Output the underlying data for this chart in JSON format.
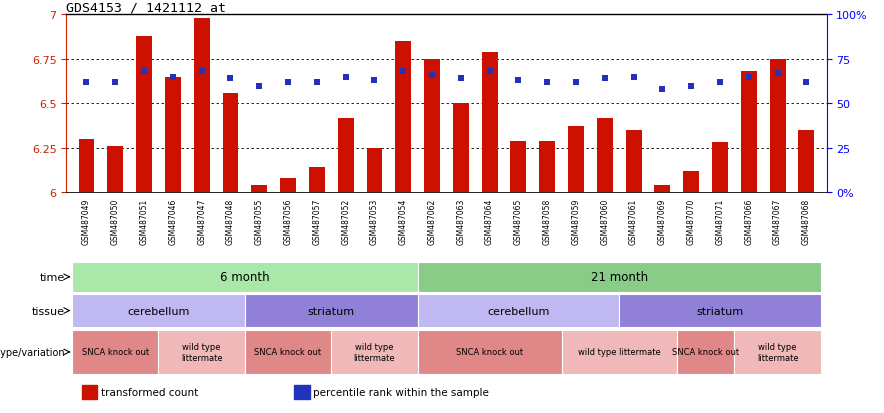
{
  "title": "GDS4153 / 1421112_at",
  "samples": [
    "GSM487049",
    "GSM487050",
    "GSM487051",
    "GSM487046",
    "GSM487047",
    "GSM487048",
    "GSM487055",
    "GSM487056",
    "GSM487057",
    "GSM487052",
    "GSM487053",
    "GSM487054",
    "GSM487062",
    "GSM487063",
    "GSM487064",
    "GSM487065",
    "GSM487058",
    "GSM487059",
    "GSM487060",
    "GSM487061",
    "GSM487069",
    "GSM487070",
    "GSM487071",
    "GSM487066",
    "GSM487067",
    "GSM487068"
  ],
  "bar_values": [
    6.3,
    6.26,
    6.88,
    6.65,
    6.98,
    6.56,
    6.04,
    6.08,
    6.14,
    6.42,
    6.25,
    6.85,
    6.75,
    6.5,
    6.79,
    6.29,
    6.29,
    6.37,
    6.42,
    6.35,
    6.04,
    6.12,
    6.28,
    6.68,
    6.75,
    6.35
  ],
  "dot_values": [
    6.62,
    6.62,
    6.68,
    6.65,
    6.68,
    6.64,
    6.6,
    6.62,
    6.62,
    6.65,
    6.63,
    6.68,
    6.66,
    6.64,
    6.68,
    6.63,
    6.62,
    6.62,
    6.64,
    6.65,
    6.58,
    6.6,
    6.62,
    6.65,
    6.67,
    6.62
  ],
  "bar_color": "#cc1100",
  "dot_color": "#2233bb",
  "ylim_left": [
    6.0,
    7.0
  ],
  "ylim_right": [
    0,
    100
  ],
  "yticks_left": [
    6.0,
    6.25,
    6.5,
    6.75,
    7.0
  ],
  "ytick_labels_left": [
    "6",
    "6.25",
    "6.5",
    "6.75",
    "7"
  ],
  "yticks_right": [
    0,
    25,
    50,
    75,
    100
  ],
  "ytick_labels_right": [
    "0%",
    "25",
    "50",
    "75",
    "100%"
  ],
  "grid_values": [
    6.25,
    6.5,
    6.75
  ],
  "time_labels": [
    {
      "text": "6 month",
      "start": 0,
      "end": 11,
      "color": "#aae8aa"
    },
    {
      "text": "21 month",
      "start": 12,
      "end": 25,
      "color": "#88cc88"
    }
  ],
  "tissue_labels": [
    {
      "text": "cerebellum",
      "start": 0,
      "end": 5,
      "color": "#c0b8f0"
    },
    {
      "text": "striatum",
      "start": 6,
      "end": 11,
      "color": "#9080d8"
    },
    {
      "text": "cerebellum",
      "start": 12,
      "end": 18,
      "color": "#c0b8f0"
    },
    {
      "text": "striatum",
      "start": 19,
      "end": 25,
      "color": "#9080d8"
    }
  ],
  "genotype_labels": [
    {
      "text": "SNCA knock out",
      "start": 0,
      "end": 2,
      "color": "#e08888"
    },
    {
      "text": "wild type\nlittermate",
      "start": 3,
      "end": 5,
      "color": "#f0b8b8"
    },
    {
      "text": "SNCA knock out",
      "start": 6,
      "end": 8,
      "color": "#e08888"
    },
    {
      "text": "wild type\nlittermate",
      "start": 9,
      "end": 11,
      "color": "#f0b8b8"
    },
    {
      "text": "SNCA knock out",
      "start": 12,
      "end": 16,
      "color": "#e08888"
    },
    {
      "text": "wild type littermate",
      "start": 17,
      "end": 20,
      "color": "#f0b8b8"
    },
    {
      "text": "SNCA knock out",
      "start": 21,
      "end": 22,
      "color": "#e08888"
    },
    {
      "text": "wild type\nlittermate",
      "start": 23,
      "end": 25,
      "color": "#f0b8b8"
    }
  ],
  "legend_items": [
    {
      "color": "#cc1100",
      "label": "transformed count"
    },
    {
      "color": "#2233bb",
      "label": "percentile rank within the sample"
    }
  ],
  "label_fontsize": 8,
  "tick_fontsize": 7,
  "sample_fontsize": 5.5,
  "annot_label_fontsize": 7.5,
  "genotype_fontsize": 6
}
